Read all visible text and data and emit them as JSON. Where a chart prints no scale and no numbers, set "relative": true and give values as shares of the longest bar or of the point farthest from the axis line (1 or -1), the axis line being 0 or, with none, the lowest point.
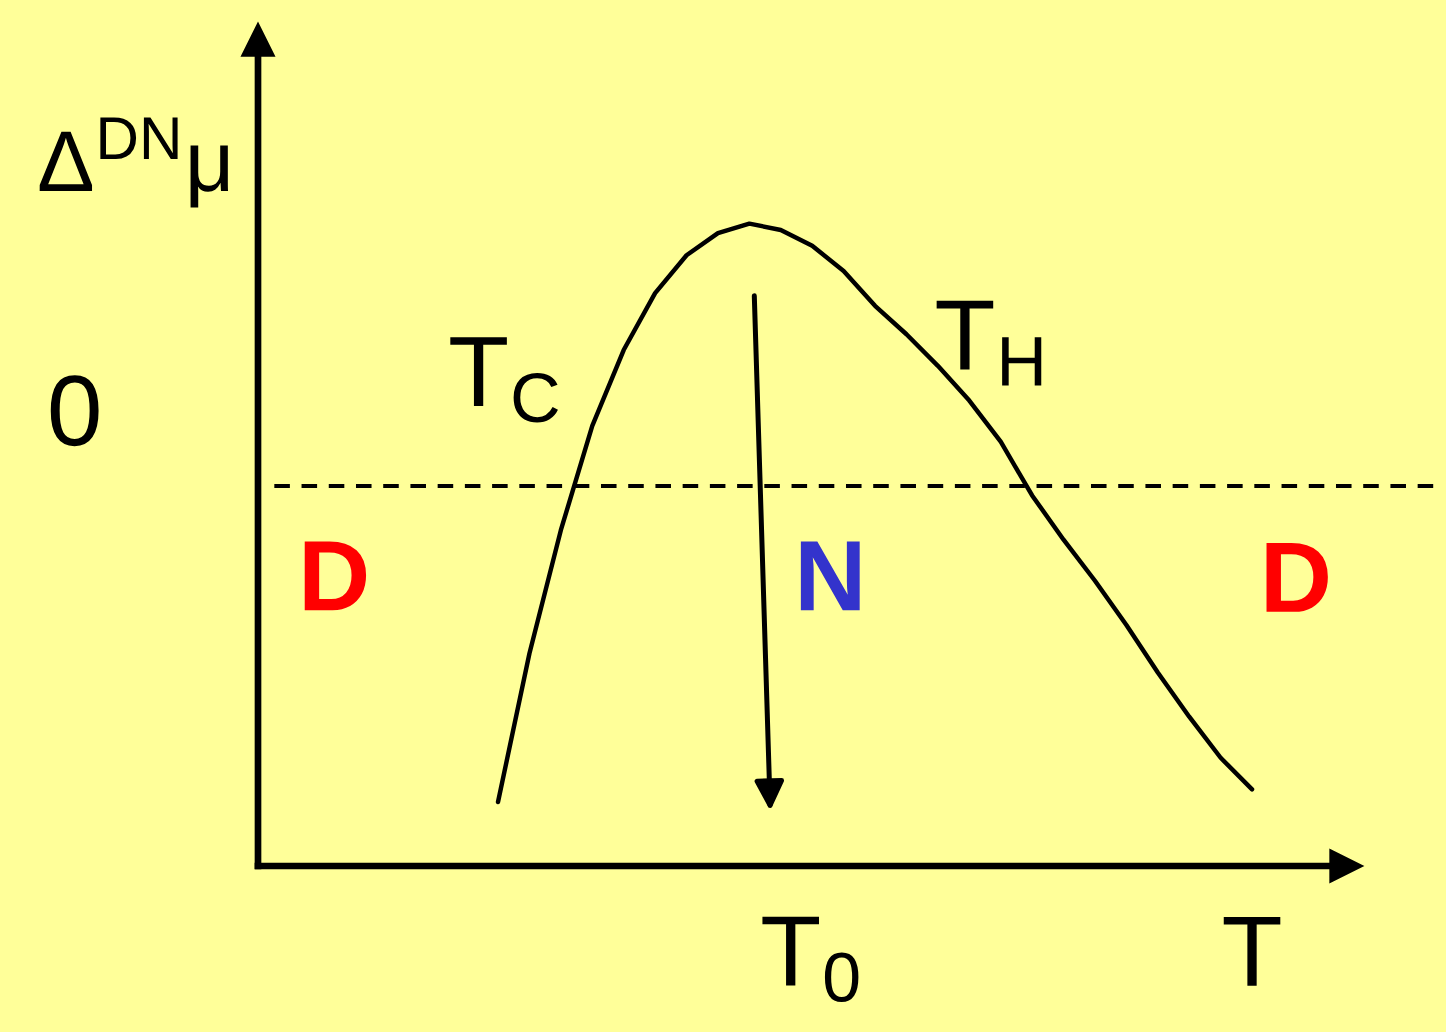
{
  "chart_data": {
    "type": "line",
    "relative": true,
    "ylabel": "Δ$^{DN}$μ",
    "categories": [
      null,
      null,
      null,
      null,
      null,
      null,
      null,
      null,
      null,
      null,
      "T$_{0}$",
      null,
      null,
      null,
      null,
      null,
      null,
      null,
      null,
      null,
      null,
      null,
      null,
      null,
      "T"
    ],
    "series": [
      {
        "color": "#000000",
        "values": [
          -1.0,
          -0.53,
          -0.14,
          0.19,
          0.43,
          0.61,
          0.73,
          0.8,
          0.83,
          0.81,
          0.76,
          0.68,
          0.57,
          0.48,
          0.38,
          0.27,
          0.14,
          -0.03,
          -0.17,
          -0.3,
          -0.44,
          -0.59,
          -0.73,
          -0.86,
          -0.96
        ]
      }
    ],
    "ref_lines": [
      {
        "axis": "y",
        "value": 0,
        "label": "0",
        "line_style": "dashed",
        "color": "#000000"
      }
    ],
    "annotations": [
      "T$_{C}$",
      "T$_{H}$",
      "D",
      "N",
      "D"
    ]
  }
}
